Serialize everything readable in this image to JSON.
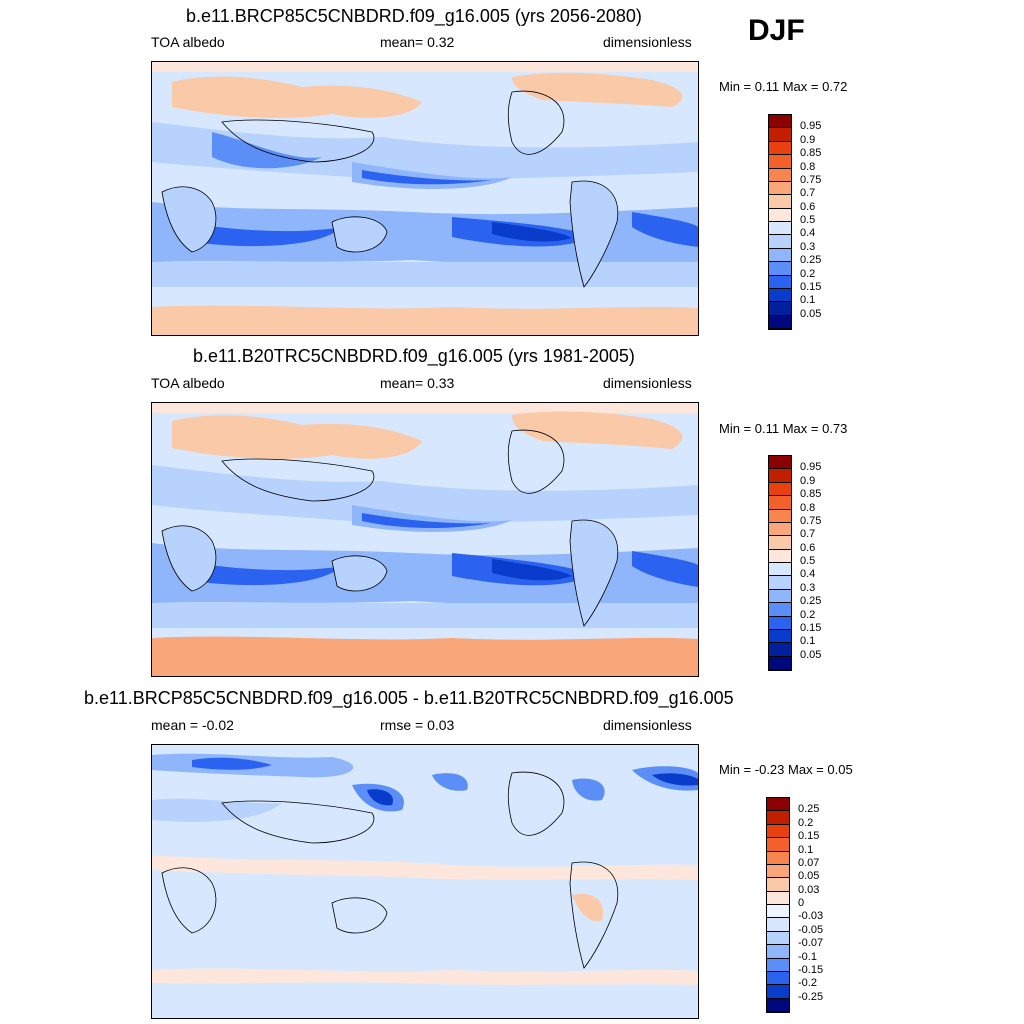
{
  "season": "DJF",
  "panels": [
    {
      "title": "b.e11.BRCP85C5CNBDRD.f09_g16.005 (yrs 2056-2080)",
      "left": "TOA albedo",
      "center": "mean=   0.32",
      "right": "dimensionless",
      "minmax": "Min =   0.11 Max =   0.72"
    },
    {
      "title": "b.e11.B20TRC5CNBDRD.f09_g16.005 (yrs 1981-2005)",
      "left": "TOA albedo",
      "center": "mean=   0.33",
      "right": "dimensionless",
      "minmax": "Min =   0.11 Max =   0.73"
    },
    {
      "title": "b.e11.BRCP85C5CNBDRD.f09_g16.005 - b.e11.B20TRC5CNBDRD.f09_g16.005",
      "left": "mean =  -0.02",
      "center": "rmse =   0.03",
      "right": "dimensionless",
      "minmax": "Min =  -0.23 Max =   0.05"
    }
  ],
  "colorbars": {
    "absolute": {
      "labels": [
        "0.95",
        "0.9",
        "0.85",
        "0.8",
        "0.75",
        "0.7",
        "0.6",
        "0.5",
        "0.4",
        "0.3",
        "0.25",
        "0.2",
        "0.15",
        "0.1",
        "0.05"
      ],
      "colors": [
        "#8b0000",
        "#c21f00",
        "#e8400f",
        "#f4602a",
        "#f8844e",
        "#f9a67a",
        "#fac9a8",
        "#fde7dd",
        "#d7e8fe",
        "#b7d2fc",
        "#8fb5fb",
        "#5b8ef6",
        "#2c62f0",
        "#0a3ccc",
        "#00209e",
        "#000880"
      ]
    },
    "difference": {
      "labels": [
        "0.25",
        "0.2",
        "0.15",
        "0.1",
        "0.07",
        "0.05",
        "0.03",
        "0",
        "-0.03",
        "-0.05",
        "-0.07",
        "-0.1",
        "-0.15",
        "-0.2",
        "-0.25"
      ],
      "colors": [
        "#8b0000",
        "#c21f00",
        "#e8400f",
        "#f4602a",
        "#f8844e",
        "#f9a67a",
        "#fac9a8",
        "#fde7dd",
        "#eef5ff",
        "#d7e8fe",
        "#b7d2fc",
        "#8fb5fb",
        "#5b8ef6",
        "#2c62f0",
        "#0a3ccc",
        "#000880"
      ]
    }
  }
}
